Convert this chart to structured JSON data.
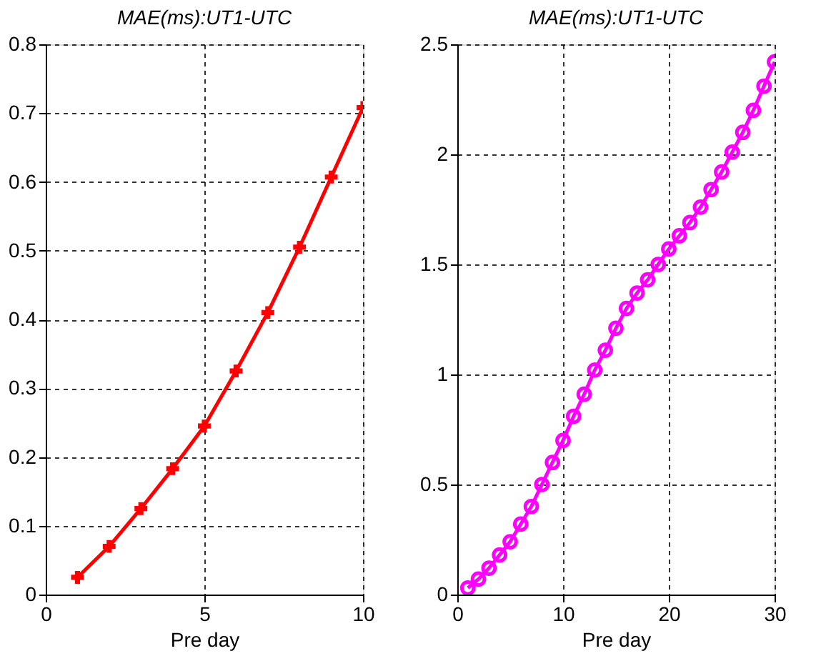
{
  "chart_data": [
    {
      "type": "line",
      "title": "MAE(ms):UT1-UTC",
      "xlabel": "Pre day",
      "x": [
        1,
        2,
        3,
        4,
        5,
        6,
        7,
        8,
        9,
        10
      ],
      "xlim": [
        0,
        10
      ],
      "xticks": [
        0,
        5,
        10
      ],
      "ylim": [
        0,
        0.8
      ],
      "yticks": [
        0,
        0.1,
        0.2,
        0.3,
        0.4,
        0.5,
        0.6,
        0.7,
        0.8
      ],
      "grid": true,
      "marker": "cross",
      "line_style": "solid",
      "series": [
        {
          "color": "#ff0000",
          "values": [
            0.025,
            0.07,
            0.125,
            0.183,
            0.245,
            0.325,
            0.41,
            0.505,
            0.607,
            0.708
          ]
        }
      ]
    },
    {
      "type": "line",
      "title": "MAE(ms):UT1-UTC",
      "xlabel": "Pre day",
      "x": [
        1,
        2,
        3,
        4,
        5,
        6,
        7,
        8,
        9,
        10,
        11,
        12,
        13,
        14,
        15,
        16,
        17,
        18,
        19,
        20,
        21,
        22,
        23,
        24,
        25,
        26,
        27,
        28,
        29,
        30
      ],
      "xlim": [
        0,
        30
      ],
      "xticks": [
        0,
        10,
        20,
        30
      ],
      "ylim": [
        0,
        2.5
      ],
      "yticks": [
        0,
        0.5,
        1,
        1.5,
        2,
        2.5
      ],
      "grid": true,
      "marker": "circle",
      "line_style": "solid",
      "series": [
        {
          "color": "#ff00ff",
          "values": [
            0.03,
            0.07,
            0.12,
            0.18,
            0.24,
            0.32,
            0.4,
            0.5,
            0.6,
            0.7,
            0.81,
            0.91,
            1.02,
            1.11,
            1.21,
            1.3,
            1.37,
            1.43,
            1.5,
            1.57,
            1.63,
            1.69,
            1.76,
            1.84,
            1.92,
            2.01,
            2.1,
            2.2,
            2.31,
            2.42
          ]
        }
      ]
    }
  ]
}
